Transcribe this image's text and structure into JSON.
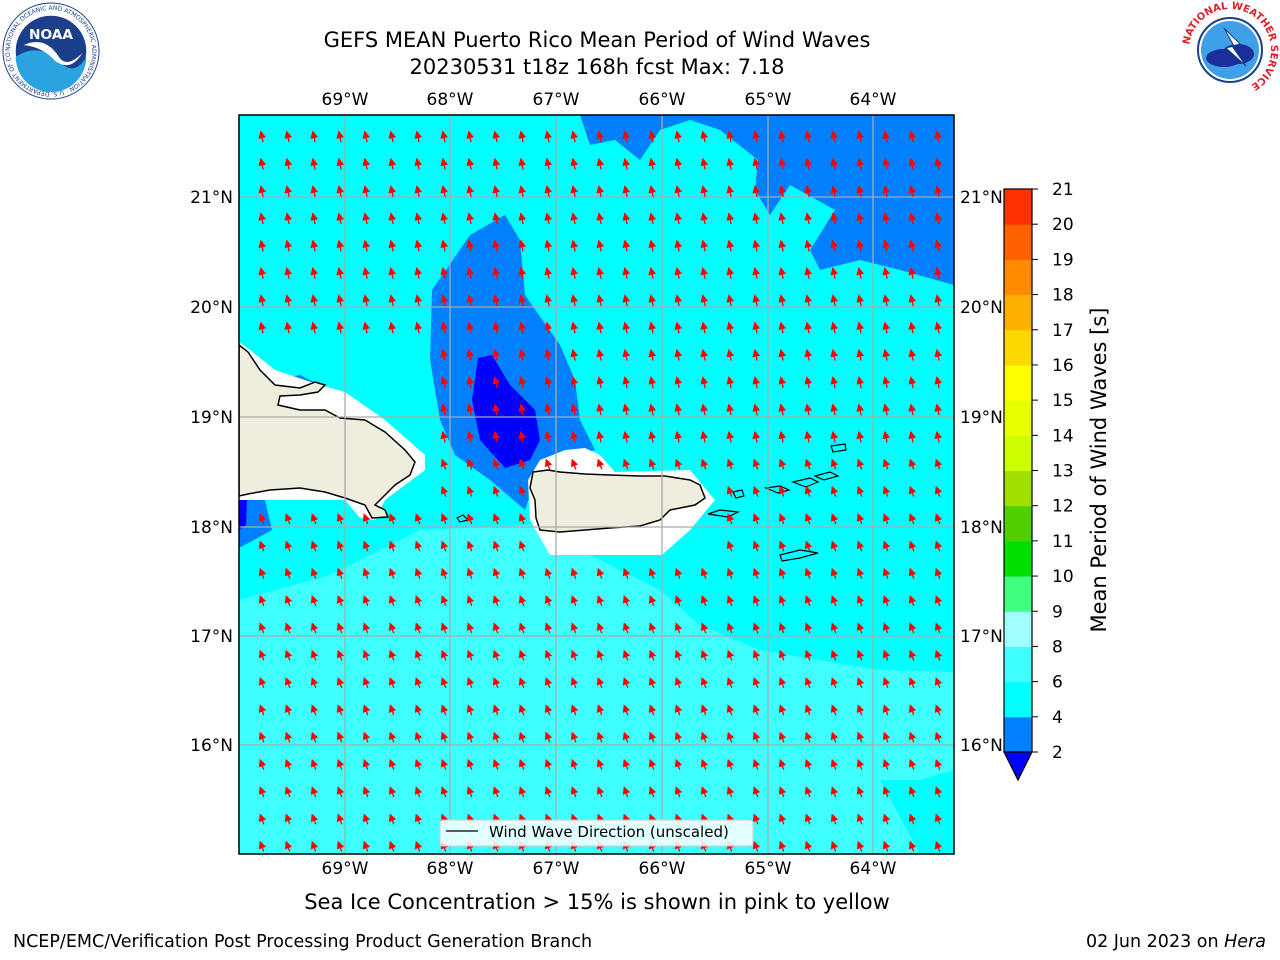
{
  "header": {
    "title_line1": "GEFS MEAN Puerto Rico Mean Period of Wind Waves",
    "title_line2": "20230531 t18z 168h fcst   Max: 7.18"
  },
  "map": {
    "lon_labels": [
      "69°W",
      "68°W",
      "67°W",
      "66°W",
      "65°W",
      "64°W"
    ],
    "lat_labels": [
      "21°N",
      "20°N",
      "19°N",
      "18°N",
      "17°N",
      "16°N"
    ],
    "legend_label": "Wind Wave Direction (unscaled)",
    "land_color": "#efedde",
    "arrow_color": "#ff0000"
  },
  "colorbar": {
    "label": "Mean Period of Wind Waves [s]",
    "ticks": [
      "2",
      "4",
      "6",
      "8",
      "9",
      "10",
      "11",
      "12",
      "13",
      "14",
      "15",
      "16",
      "17",
      "18",
      "19",
      "20",
      "21"
    ],
    "colors": [
      "#0080ff",
      "#00ffff",
      "#40ffff",
      "#a0ffff",
      "#40ff80",
      "#00e000",
      "#50d000",
      "#a0e000",
      "#ccff00",
      "#e8ff00",
      "#ffff00",
      "#ffd700",
      "#ffb000",
      "#ff8c00",
      "#ff6000",
      "#ff3000",
      "#ff0000"
    ],
    "under_color": "#0000ff"
  },
  "note": "Sea Ice Concentration > 15% is shown in pink to yellow",
  "footer": {
    "left": "NCEP/EMC/Verification Post Processing Product Generation Branch",
    "right_prefix": "02 Jun 2023 on ",
    "right_host": "Hera"
  },
  "logos": {
    "noaa_text": "NOAA",
    "noaa_ring": "NATIONAL OCEANIC AND ATMOSPHERIC ADMINISTRATION · U.S. DEPARTMENT OF COMMERCE",
    "nws_ring": "NATIONAL WEATHER SERVICE"
  }
}
